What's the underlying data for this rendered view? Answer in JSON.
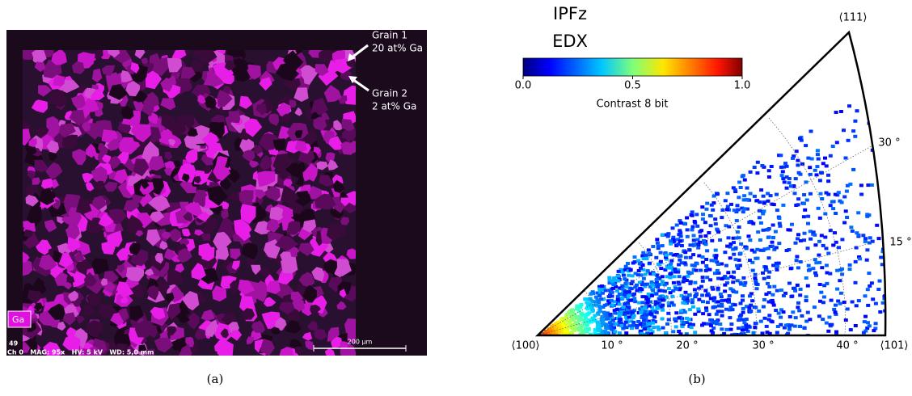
{
  "panel_a": {
    "caption": "(a)",
    "annotations": [
      {
        "label": "Grain 1",
        "detail": "20 at% Ga"
      },
      {
        "label": "Grain 2",
        "detail": "2 at% Ga"
      }
    ],
    "channel_tag": "Ga",
    "footer": {
      "number": "49",
      "info": "Ch 0   MAG: 95x   HV: 5 kV   WD: 5,0 mm",
      "scale_bar": "200 µm"
    }
  },
  "panel_b": {
    "caption": "(b)",
    "title": "IPFz",
    "subtitle": "EDX",
    "colorbar": {
      "lim": [
        0,
        1
      ],
      "ticks": [
        {
          "value": 0,
          "label": "0.0"
        },
        {
          "value": 0.5,
          "label": "0.5"
        },
        {
          "value": 1,
          "label": "1.0"
        }
      ],
      "label": "Contrast 8 bit"
    },
    "poles": {
      "top": "⟨111⟩",
      "left": "⟨100⟩",
      "right": "⟨101⟩"
    },
    "bottom_angles": [
      "10 °",
      "20 °",
      "30 °",
      "40 °"
    ],
    "edge_angles": [
      "15 °",
      "30 °"
    ]
  }
}
